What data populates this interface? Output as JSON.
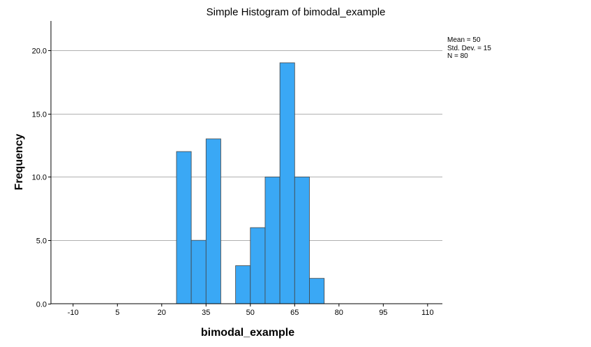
{
  "chart_data": {
    "type": "bar",
    "title": "Simple Histogram of bimodal_example",
    "xlabel": "bimodal_example",
    "ylabel": "Frequency",
    "x_ticks": [
      "-10",
      "5",
      "20",
      "35",
      "50",
      "65",
      "80",
      "95",
      "110"
    ],
    "x_tick_values": [
      -10,
      5,
      20,
      35,
      50,
      65,
      80,
      95,
      110
    ],
    "y_ticks": [
      "0.0",
      "5.0",
      "10.0",
      "15.0",
      "20.0"
    ],
    "y_tick_values": [
      0,
      5,
      10,
      15,
      20
    ],
    "xlim": [
      -17.5,
      115
    ],
    "ylim": [
      0,
      22.3
    ],
    "bin_width": 5,
    "bins": [
      {
        "start": 25,
        "end": 30,
        "count": 12
      },
      {
        "start": 30,
        "end": 35,
        "count": 5
      },
      {
        "start": 35,
        "end": 40,
        "count": 13
      },
      {
        "start": 45,
        "end": 50,
        "count": 3
      },
      {
        "start": 50,
        "end": 55,
        "count": 6
      },
      {
        "start": 55,
        "end": 60,
        "count": 10
      },
      {
        "start": 60,
        "end": 65,
        "count": 19
      },
      {
        "start": 65,
        "end": 70,
        "count": 10
      },
      {
        "start": 70,
        "end": 75,
        "count": 2
      }
    ],
    "grid": "horizontal",
    "bar_color": "#3aa8f5",
    "bar_edge_color": "#444444",
    "grid_color": "#b0b0b0",
    "stats": {
      "mean": "Mean = 50",
      "std": "Std. Dev. = 15",
      "n": "N = 80"
    }
  }
}
